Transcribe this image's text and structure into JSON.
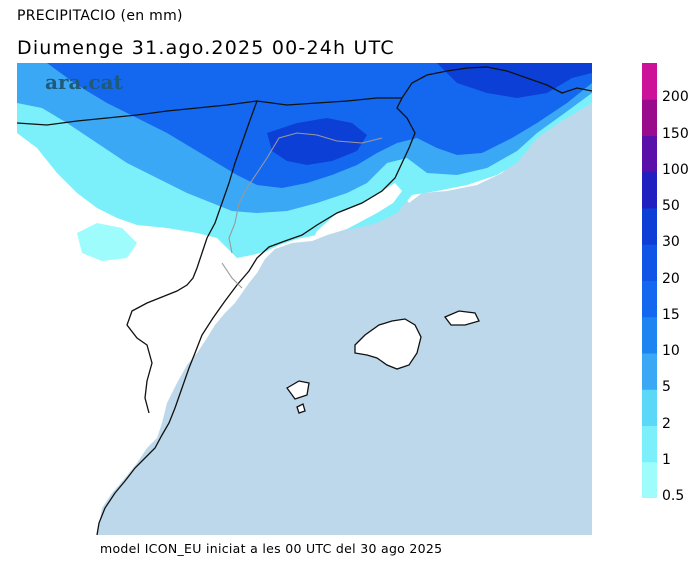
{
  "header": {
    "title": "PRECIPITACIO (en mm)",
    "subtitle": "Diumenge  31.ago.2025  00-24h  UTC"
  },
  "footer": "model ICON_EU iniciat a les 00 UTC del 30 ago 2025",
  "logo": "ara.cat",
  "legend": {
    "levels": [
      {
        "label": "0.5",
        "color": "#9ffcfc"
      },
      {
        "label": "1",
        "color": "#7cf0fa"
      },
      {
        "label": "2",
        "color": "#5bd8f8"
      },
      {
        "label": "5",
        "color": "#3aa8f5"
      },
      {
        "label": "10",
        "color": "#1d85f2"
      },
      {
        "label": "15",
        "color": "#1468f0"
      },
      {
        "label": "20",
        "color": "#0f55e6"
      },
      {
        "label": "30",
        "color": "#0c3fd6"
      },
      {
        "label": "50",
        "color": "#2020c0"
      },
      {
        "label": "100",
        "color": "#5a10a8"
      },
      {
        "label": "150",
        "color": "#9a0a8c"
      },
      {
        "label": "200",
        "color": "#cc1299"
      }
    ]
  },
  "colors": {
    "sea": "#bcd8ea",
    "land_dry": "#ffffff",
    "border": "#111111",
    "province_border": "#999999"
  }
}
